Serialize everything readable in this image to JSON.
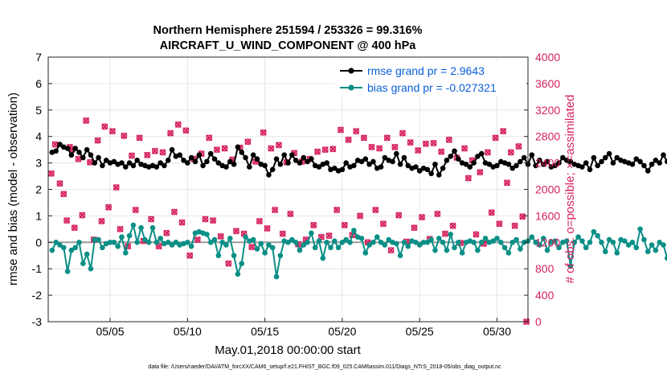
{
  "chart_data": {
    "type": "line",
    "title_line1": "Northern Hemisphere 251594 / 253326 = 99.316%",
    "title_line2": "AIRCRAFT_U_WIND_COMPONENT @ 400 hPa",
    "xlabel": "May.01,2018 00:00:00 start",
    "ylabel_left": "rmse and bias (model - observation)",
    "ylabel_right": "# of obs: o=possible; ×=assimilated",
    "footer": "data file: /Users/raeder/DAI/ATM_forcXX/CAM6_setup/f.e21.FHIST_BGC.f09_025.CAM6assim.011/Diags_NTrS_2018-05/obs_diag_output.nc",
    "xlim": [
      1,
      32
    ],
    "ylim_left": [
      -3,
      7
    ],
    "ylim_right": [
      0,
      4000
    ],
    "x_ticks": [
      5,
      10,
      15,
      20,
      25,
      30
    ],
    "x_tick_labels": [
      "05/05",
      "05/10",
      "05/15",
      "05/20",
      "05/25",
      "05/30"
    ],
    "left_ticks": [
      -3,
      -2,
      -1,
      0,
      1,
      2,
      3,
      4,
      5,
      6,
      7
    ],
    "left_tick_labels": [
      "-3",
      "-2",
      "-1",
      "0",
      "1",
      "2",
      "3",
      "4",
      "5",
      "6",
      "7"
    ],
    "right_ticks": [
      0,
      400,
      800,
      1200,
      1600,
      2000,
      2400,
      2800,
      3200,
      3600,
      4000
    ],
    "right_tick_labels": [
      "0",
      "400",
      "800",
      "1200",
      "1600",
      "2000",
      "2400",
      "2800",
      "3200",
      "3600",
      "4000"
    ],
    "x_start": 1.25,
    "x_step": 0.25,
    "series": [
      {
        "name": "rmse grand pr = 2.9643",
        "color": "#000000",
        "values": [
          3.4,
          3.45,
          3.7,
          3.6,
          3.55,
          3.3,
          3.55,
          3.4,
          3.2,
          3.5,
          3.3,
          3.0,
          3.2,
          2.9,
          3.1,
          3.0,
          3.05,
          2.95,
          3.0,
          2.85,
          3.0,
          2.9,
          3.1,
          2.95,
          2.9,
          2.85,
          2.9,
          2.85,
          3.0,
          2.9,
          3.1,
          3.5,
          3.25,
          3.3,
          3.1,
          3.0,
          3.2,
          3.05,
          3.3,
          2.9,
          3.05,
          3.35,
          3.15,
          3.0,
          2.9,
          2.85,
          3.05,
          2.95,
          3.6,
          3.4,
          3.2,
          2.85,
          3.3,
          3.15,
          2.95,
          2.9,
          2.55,
          2.75,
          3.15,
          2.95,
          3.3,
          3.0,
          3.3,
          3.1,
          3.0,
          3.2,
          3.05,
          3.15,
          2.9,
          2.85,
          2.95,
          3.0,
          2.75,
          2.8,
          2.7,
          2.75,
          3.0,
          2.85,
          2.9,
          3.1,
          3.05,
          3.15,
          2.95,
          3.05,
          2.8,
          2.85,
          3.2,
          3.1,
          3.05,
          3.35,
          2.95,
          3.2,
          2.9,
          2.8,
          2.85,
          2.7,
          2.8,
          2.75,
          2.6,
          2.95,
          2.55,
          2.8,
          3.1,
          3.25,
          3.45,
          3.15,
          3.0,
          2.95,
          2.85,
          3.0,
          3.25,
          3.35,
          3.0,
          2.95,
          2.85,
          2.9,
          3.05,
          3.0,
          2.95,
          2.8,
          2.9,
          3.05,
          3.2,
          2.95,
          3.3,
          2.9,
          3.1,
          2.95,
          3.05,
          2.85,
          2.9,
          3.0,
          3.2,
          3.1,
          3.05,
          2.95,
          2.9,
          2.85,
          3.0,
          2.75,
          3.2,
          2.9,
          3.05,
          3.2,
          3.35,
          3.0,
          3.2,
          3.1,
          3.05,
          3.0,
          2.95,
          3.15,
          3.05,
          2.9,
          2.7,
          2.95,
          3.1,
          3.0,
          3.3,
          3.05,
          3.2,
          2.8,
          3.0,
          2.75,
          3.15,
          3.0,
          3.75,
          3.1,
          2.6,
          2.85,
          2.5
        ]
      },
      {
        "name": "bias grand pr = -0.027321",
        "color": "#0a8f86",
        "values": [
          -0.3,
          0.0,
          -0.1,
          -0.2,
          -1.1,
          -0.3,
          -0.2,
          0.0,
          -0.8,
          -0.45,
          -1.0,
          0.1,
          0.1,
          -0.2,
          -0.05,
          0.0,
          0.0,
          -0.15,
          0.2,
          -0.4,
          0.25,
          0.65,
          0.0,
          0.55,
          0.1,
          0.0,
          0.55,
          0.0,
          0.15,
          -0.05,
          0.0,
          -0.1,
          0.0,
          -0.1,
          -0.05,
          0.0,
          -0.15,
          0.35,
          0.4,
          0.35,
          0.3,
          0.0,
          0.1,
          -0.5,
          0.0,
          -0.1,
          0.15,
          -0.5,
          -1.2,
          -0.8,
          0.2,
          0.05,
          0.1,
          -0.25,
          -0.05,
          -0.4,
          -0.1,
          -0.2,
          -1.3,
          -0.5,
          0.05,
          0.0,
          0.1,
          0.0,
          -0.3,
          -0.1,
          0.0,
          0.35,
          -0.2,
          0.05,
          -0.6,
          0.0,
          -0.2,
          0.05,
          -0.2,
          0.0,
          0.1,
          0.0,
          0.45,
          0.2,
          0.15,
          -0.4,
          -0.1,
          0.0,
          0.2,
          0.0,
          -0.1,
          0.1,
          0.0,
          -0.05,
          -0.5,
          0.0,
          -0.15,
          0.05,
          0.0,
          -0.1,
          0.0,
          0.0,
          0.1,
          -0.3,
          0.15,
          0.0,
          -0.3,
          0.3,
          -0.2,
          0.0,
          -0.4,
          0.0,
          0.05,
          0.0,
          -0.3,
          0.0,
          0.15,
          0.0,
          0.05,
          0.15,
          0.0,
          -0.2,
          -0.4,
          0.0,
          0.1,
          -0.25,
          0.0,
          0.05,
          0.2,
          0.0,
          -0.1,
          0.15,
          -0.3,
          0.0,
          0.05,
          -0.2,
          0.0,
          0.05,
          -0.9,
          0.0,
          0.2,
          0.05,
          -0.2,
          0.0,
          0.4,
          0.25,
          0.0,
          -0.35,
          0.1,
          0.0,
          -0.4,
          0.1,
          0.05,
          -0.1,
          0.0,
          -0.2,
          0.5,
          0.1,
          -0.35,
          -0.1,
          -0.3,
          0.0,
          -0.1,
          -0.6,
          -0.4,
          -0.5,
          -0.3,
          0.0,
          -0.45,
          -0.3,
          -0.4,
          -0.2,
          -0.1,
          -0.2,
          -0.15
        ]
      }
    ],
    "obs_counts": {
      "color": "#d6225f",
      "hour_offsets": [
        0,
        0.5
      ],
      "values": [
        2160,
        2570,
        2380,
        1890,
        1620,
        2940,
        1680,
        2800,
        1230,
        2710,
        1110,
        2910,
        1240,
        2980,
        1520,
        2860,
        1130,
        2950,
        1400,
        2820,
        1240,
        2950,
        1390,
        2880,
        1260,
        2990,
        1640,
        2560,
        1520,
        2820,
        1570,
        2680,
        1250,
        2920,
        1420,
        2540,
        1170,
        2780,
        1540,
        2880,
        1240,
        2880,
        1630,
        2630,
        1220,
        2920,
        1530,
        2790,
        1130,
        2520,
        1590,
        2440,
        1380,
        2760,
        1160,
        2640,
        1390,
        2780,
        870,
        2970,
        1280,
        2820,
        1300,
        2570,
        1140,
        2840,
        1350,
        2570,
        1110,
        2970,
        1300,
        2740,
        1340,
        2700,
        1110,
        2810,
        1500,
        2580,
        1090,
        2700,
        1610,
        2650,
        1400,
        2780,
        1570,
        2720,
        1050,
        2660,
        1290,
        2950,
        1510,
        2880,
        1210,
        2720,
        1660,
        2780,
        1430,
        2980,
        1530,
        2850,
        1330,
        2570,
        1490,
        2780,
        1670,
        2610,
        1200,
        2940,
        1400,
        2870,
        1600,
        2770,
        1510,
        2820,
        1200,
        2860,
        2180,
        2990,
        1370,
        2760,
        1530,
        2640,
        1820,
        2720,
        1460,
        2680,
        1260,
        2690,
        1880,
        2910,
        2070,
        2690,
        1730,
        2840,
        1280,
        2550,
        1460,
        2590,
        1900,
        2860,
        1660,
        2700,
        1570,
        2760,
        2130,
        2880,
        1500,
        2690,
        1430,
        2700,
        1580,
        2760,
        1230,
        2850,
        2060,
        2860,
        1690,
        2680,
        1210,
        2910,
        1560,
        2840,
        1760,
        2670,
        2030,
        2970,
        1430,
        2790,
        1240,
        2800,
        1580,
        2890,
        1840,
        2700,
        1590,
        2740,
        1790,
        2840,
        1650,
        2920,
        1510,
        2480,
        1790,
        2800,
        2000,
        2930,
        1700,
        2770,
        2120,
        2850,
        1690,
        2870,
        1580,
        2690,
        1590,
        2830,
        2180,
        2870,
        1650,
        2760,
        2000,
        2950,
        1660,
        2900,
        2310,
        2820,
        1890,
        2870,
        2050,
        2800,
        1700,
        2770,
        1860,
        2890,
        2150,
        2820,
        1810,
        2900,
        2020,
        2730,
        1710,
        2820,
        1790,
        2910,
        1870,
        2680,
        2240,
        2920,
        1550,
        2880,
        2140,
        2950,
        2150,
        2880,
        1900,
        2700,
        2040,
        2830,
        2010,
        2890,
        1770,
        2920,
        1890,
        2800,
        2060,
        2960,
        1870,
        2850,
        1900,
        2760,
        1690,
        2880,
        2080,
        2810,
        2090,
        2620,
        1700,
        2760,
        2140,
        2930,
        1890,
        2790,
        1990,
        2850,
        2000,
        2830,
        1840,
        2880,
        1690,
        2870,
        2060,
        2900,
        1720,
        2840,
        1880,
        2800,
        2150,
        2860,
        2050,
        2780,
        2160,
        2920,
        1680,
        2900,
        2190,
        2870,
        1790,
        2960,
        2080,
        2850,
        2290,
        2930,
        2240,
        2760,
        1770,
        2820,
        2180,
        2930,
        1880,
        2870,
        2210,
        2910,
        2160,
        2850,
        2330,
        2870,
        2200,
        2810,
        2300,
        2880,
        2150,
        2950,
        2320,
        2810,
        2220,
        2930,
        2110,
        2890,
        2320,
        2840,
        2130,
        2780,
        2270,
        2890,
        2290,
        2920,
        2140,
        2880,
        2300,
        2810,
        2130,
        2860,
        2390,
        2880,
        2150,
        2790,
        2290,
        2820,
        2050,
        2890,
        2260,
        2760,
        2350,
        2900,
        2210,
        2880,
        2360,
        2780,
        2130,
        2820,
        2290,
        2810,
        2350,
        2850,
        2140,
        2850,
        2280,
        2790
      ],
      "points": [
        {
          "x": 1.2,
          "v": 2240
        },
        {
          "x": 1.45,
          "v": 2680
        },
        {
          "x": 1.75,
          "v": 2090
        },
        {
          "x": 2.0,
          "v": 1930
        },
        {
          "x": 2.2,
          "v": 1530
        },
        {
          "x": 2.4,
          "v": 2640
        },
        {
          "x": 2.55,
          "v": 2600
        },
        {
          "x": 2.7,
          "v": 1420
        },
        {
          "x": 2.95,
          "v": 2460
        },
        {
          "x": 3.2,
          "v": 1610
        },
        {
          "x": 3.45,
          "v": 3040
        },
        {
          "x": 3.7,
          "v": 2410
        },
        {
          "x": 3.95,
          "v": 1240
        },
        {
          "x": 4.2,
          "v": 2740
        },
        {
          "x": 4.45,
          "v": 1520
        },
        {
          "x": 4.65,
          "v": 2950
        },
        {
          "x": 4.9,
          "v": 1730
        },
        {
          "x": 5.15,
          "v": 2880
        },
        {
          "x": 5.4,
          "v": 2030
        },
        {
          "x": 5.65,
          "v": 1400
        },
        {
          "x": 5.9,
          "v": 2810
        },
        {
          "x": 6.15,
          "v": 1140
        },
        {
          "x": 6.4,
          "v": 2510
        },
        {
          "x": 6.65,
          "v": 1690
        },
        {
          "x": 6.9,
          "v": 2780
        },
        {
          "x": 7.15,
          "v": 1220
        },
        {
          "x": 7.4,
          "v": 2520
        },
        {
          "x": 7.65,
          "v": 1550
        },
        {
          "x": 7.9,
          "v": 2580
        },
        {
          "x": 8.15,
          "v": 1140
        },
        {
          "x": 8.4,
          "v": 2560
        },
        {
          "x": 8.65,
          "v": 1340
        },
        {
          "x": 8.9,
          "v": 2850
        },
        {
          "x": 9.15,
          "v": 1660
        },
        {
          "x": 9.4,
          "v": 2980
        },
        {
          "x": 9.65,
          "v": 1500
        },
        {
          "x": 9.9,
          "v": 2890
        },
        {
          "x": 10.15,
          "v": 1000
        },
        {
          "x": 10.4,
          "v": 2460
        },
        {
          "x": 10.65,
          "v": 1240
        },
        {
          "x": 10.9,
          "v": 2540
        },
        {
          "x": 11.15,
          "v": 1550
        },
        {
          "x": 11.4,
          "v": 2780
        },
        {
          "x": 11.65,
          "v": 1530
        },
        {
          "x": 11.9,
          "v": 2600
        },
        {
          "x": 12.15,
          "v": 1290
        },
        {
          "x": 12.4,
          "v": 2620
        },
        {
          "x": 12.65,
          "v": 880
        },
        {
          "x": 12.9,
          "v": 2450
        },
        {
          "x": 13.15,
          "v": 1370
        },
        {
          "x": 13.4,
          "v": 2630
        },
        {
          "x": 13.65,
          "v": 1330
        },
        {
          "x": 13.9,
          "v": 2720
        },
        {
          "x": 14.15,
          "v": 1130
        },
        {
          "x": 14.4,
          "v": 2420
        },
        {
          "x": 14.65,
          "v": 1520
        },
        {
          "x": 14.9,
          "v": 2860
        },
        {
          "x": 15.15,
          "v": 1410
        },
        {
          "x": 15.4,
          "v": 2620
        },
        {
          "x": 15.65,
          "v": 1690
        },
        {
          "x": 15.9,
          "v": 2670
        },
        {
          "x": 16.15,
          "v": 1330
        },
        {
          "x": 16.4,
          "v": 2410
        },
        {
          "x": 16.65,
          "v": 1630
        },
        {
          "x": 16.9,
          "v": 2550
        },
        {
          "x": 17.15,
          "v": 1170
        },
        {
          "x": 17.4,
          "v": 2420
        },
        {
          "x": 17.65,
          "v": 1240
        },
        {
          "x": 17.9,
          "v": 2460
        },
        {
          "x": 18.15,
          "v": 1460
        },
        {
          "x": 18.4,
          "v": 2570
        },
        {
          "x": 18.65,
          "v": 1280
        },
        {
          "x": 18.9,
          "v": 2600
        },
        {
          "x": 19.15,
          "v": 1300
        },
        {
          "x": 19.4,
          "v": 2610
        },
        {
          "x": 19.65,
          "v": 1690
        },
        {
          "x": 19.9,
          "v": 2900
        },
        {
          "x": 20.15,
          "v": 1460
        },
        {
          "x": 20.4,
          "v": 2750
        },
        {
          "x": 20.65,
          "v": 1310
        },
        {
          "x": 20.9,
          "v": 2880
        },
        {
          "x": 21.15,
          "v": 1600
        },
        {
          "x": 21.4,
          "v": 2780
        },
        {
          "x": 21.65,
          "v": 1200
        },
        {
          "x": 21.9,
          "v": 2640
        },
        {
          "x": 22.15,
          "v": 1690
        },
        {
          "x": 22.4,
          "v": 2620
        },
        {
          "x": 22.65,
          "v": 1480
        },
        {
          "x": 22.9,
          "v": 2780
        },
        {
          "x": 23.15,
          "v": 1080
        },
        {
          "x": 23.4,
          "v": 2640
        },
        {
          "x": 23.65,
          "v": 1610
        },
        {
          "x": 23.9,
          "v": 2850
        },
        {
          "x": 24.15,
          "v": 1210
        },
        {
          "x": 24.4,
          "v": 2710
        },
        {
          "x": 24.65,
          "v": 1420
        },
        {
          "x": 24.9,
          "v": 2590
        },
        {
          "x": 25.15,
          "v": 1580
        },
        {
          "x": 25.4,
          "v": 2690
        },
        {
          "x": 25.65,
          "v": 1250
        },
        {
          "x": 25.9,
          "v": 2700
        },
        {
          "x": 26.15,
          "v": 1630
        },
        {
          "x": 26.4,
          "v": 2570
        },
        {
          "x": 26.65,
          "v": 1330
        },
        {
          "x": 26.9,
          "v": 2750
        },
        {
          "x": 27.15,
          "v": 1450
        },
        {
          "x": 27.4,
          "v": 2480
        },
        {
          "x": 27.65,
          "v": 1190
        },
        {
          "x": 27.9,
          "v": 2620
        },
        {
          "x": 28.15,
          "v": 2170
        },
        {
          "x": 28.4,
          "v": 2440
        },
        {
          "x": 28.65,
          "v": 1320
        },
        {
          "x": 28.9,
          "v": 2260
        },
        {
          "x": 29.15,
          "v": 1180
        },
        {
          "x": 29.4,
          "v": 2560
        },
        {
          "x": 29.65,
          "v": 1650
        },
        {
          "x": 29.9,
          "v": 2780
        },
        {
          "x": 30.15,
          "v": 1480
        },
        {
          "x": 30.4,
          "v": 2880
        },
        {
          "x": 30.65,
          "v": 2100
        },
        {
          "x": 30.9,
          "v": 2560
        },
        {
          "x": 31.15,
          "v": 1450
        },
        {
          "x": 31.4,
          "v": 2650
        },
        {
          "x": 31.65,
          "v": 1590
        },
        {
          "x": 31.9,
          "v": 0
        }
      ]
    }
  }
}
